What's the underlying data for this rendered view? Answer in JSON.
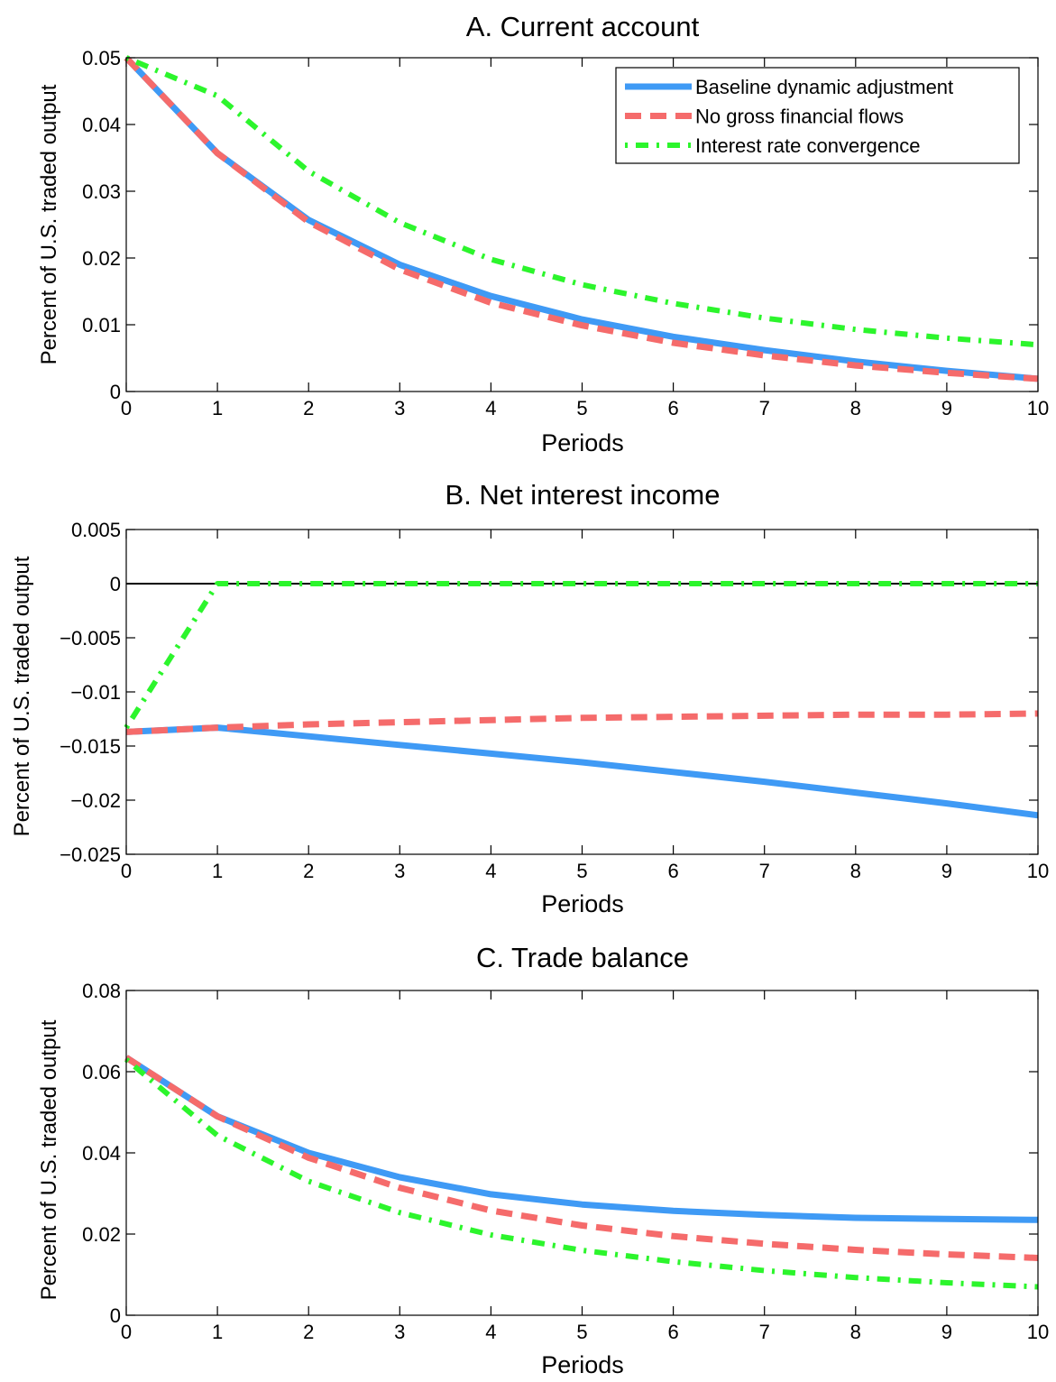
{
  "chart_data": [
    {
      "type": "line",
      "title": "A. Current account",
      "xlabel": "Periods",
      "ylabel": "Percent of U.S. traded output",
      "xlim": [
        0,
        10
      ],
      "ylim": [
        0,
        0.05
      ],
      "xticks": [
        "0",
        "1",
        "2",
        "3",
        "4",
        "5",
        "6",
        "7",
        "8",
        "9",
        "10"
      ],
      "yticks": [
        {
          "value": 0,
          "label": "0"
        },
        {
          "value": 0.01,
          "label": "0.01"
        },
        {
          "value": 0.02,
          "label": "0.02"
        },
        {
          "value": 0.03,
          "label": "0.03"
        },
        {
          "value": 0.04,
          "label": "0.04"
        },
        {
          "value": 0.05,
          "label": "0.05"
        }
      ],
      "grid": false,
      "legend_position": "top-right",
      "x": [
        0,
        1,
        2,
        3,
        4,
        5,
        6,
        7,
        8,
        9,
        10
      ],
      "series": [
        {
          "name": "Baseline dynamic adjustment",
          "style": "solid",
          "color": "#3f9af5",
          "values": [
            0.05,
            0.0357,
            0.0257,
            0.019,
            0.0143,
            0.0108,
            0.0082,
            0.0062,
            0.0045,
            0.0031,
            0.0019
          ]
        },
        {
          "name": "No gross financial flows",
          "style": "dashed",
          "color": "#f56b6b",
          "values": [
            0.05,
            0.0357,
            0.0254,
            0.0183,
            0.0133,
            0.0099,
            0.0073,
            0.0054,
            0.0039,
            0.0028,
            0.0019
          ]
        },
        {
          "name": "Interest rate convergence",
          "style": "dashdot",
          "color": "#2cf52c",
          "values": [
            0.05,
            0.0443,
            0.033,
            0.0253,
            0.0198,
            0.016,
            0.0132,
            0.011,
            0.0093,
            0.008,
            0.007
          ]
        }
      ]
    },
    {
      "type": "line",
      "title": "B. Net interest income",
      "xlabel": "Periods",
      "ylabel": "Percent of U.S. traded output",
      "xlim": [
        0,
        10
      ],
      "ylim": [
        -0.025,
        0.005
      ],
      "xticks": [
        "0",
        "1",
        "2",
        "3",
        "4",
        "5",
        "6",
        "7",
        "8",
        "9",
        "10"
      ],
      "yticks": [
        {
          "value": 0.005,
          "label": "0.005"
        },
        {
          "value": 0,
          "label": "0"
        },
        {
          "value": -0.005,
          "label": "−0.005"
        },
        {
          "value": -0.01,
          "label": "−0.01"
        },
        {
          "value": -0.015,
          "label": "−0.015"
        },
        {
          "value": -0.02,
          "label": "−0.02"
        },
        {
          "value": -0.025,
          "label": "−0.025"
        }
      ],
      "grid": false,
      "zero_line": true,
      "x": [
        0,
        1,
        2,
        3,
        4,
        5,
        6,
        7,
        8,
        9,
        10
      ],
      "series": [
        {
          "name": "Baseline dynamic adjustment",
          "style": "solid",
          "color": "#3f9af5",
          "values": [
            -0.0137,
            -0.0133,
            -0.0141,
            -0.0149,
            -0.0157,
            -0.0165,
            -0.0174,
            -0.0183,
            -0.0193,
            -0.0203,
            -0.0214
          ]
        },
        {
          "name": "No gross financial flows",
          "style": "dashed",
          "color": "#f56b6b",
          "values": [
            -0.0137,
            -0.0133,
            -0.013,
            -0.0128,
            -0.0126,
            -0.0124,
            -0.0123,
            -0.0122,
            -0.0121,
            -0.0121,
            -0.012
          ]
        },
        {
          "name": "Interest rate convergence",
          "style": "dashdot",
          "color": "#2cf52c",
          "values": [
            -0.0133,
            0.0,
            0.0,
            0.0,
            0.0,
            0.0,
            0.0,
            0.0,
            0.0,
            0.0,
            0.0
          ]
        }
      ]
    },
    {
      "type": "line",
      "title": "C. Trade balance",
      "xlabel": "Periods",
      "ylabel": "Percent of U.S. traded output",
      "xlim": [
        0,
        10
      ],
      "ylim": [
        0,
        0.08
      ],
      "xticks": [
        "0",
        "1",
        "2",
        "3",
        "4",
        "5",
        "6",
        "7",
        "8",
        "9",
        "10"
      ],
      "yticks": [
        {
          "value": 0,
          "label": "0"
        },
        {
          "value": 0.02,
          "label": "0.02"
        },
        {
          "value": 0.04,
          "label": "0.04"
        },
        {
          "value": 0.06,
          "label": "0.06"
        },
        {
          "value": 0.08,
          "label": "0.08"
        }
      ],
      "grid": false,
      "x": [
        0,
        1,
        2,
        3,
        4,
        5,
        6,
        7,
        8,
        9,
        10
      ],
      "series": [
        {
          "name": "Baseline dynamic adjustment",
          "style": "solid",
          "color": "#3f9af5",
          "values": [
            0.0635,
            0.049,
            0.04,
            0.034,
            0.0298,
            0.0273,
            0.0257,
            0.0247,
            0.024,
            0.0237,
            0.0235
          ]
        },
        {
          "name": "No gross financial flows",
          "style": "dashed",
          "color": "#f56b6b",
          "values": [
            0.0635,
            0.049,
            0.0388,
            0.0314,
            0.0258,
            0.0221,
            0.0195,
            0.0176,
            0.0161,
            0.015,
            0.0141
          ]
        },
        {
          "name": "Interest rate convergence",
          "style": "dashdot",
          "color": "#2cf52c",
          "values": [
            0.063,
            0.0443,
            0.033,
            0.0253,
            0.0198,
            0.016,
            0.0132,
            0.011,
            0.0093,
            0.008,
            0.007
          ]
        }
      ]
    }
  ]
}
